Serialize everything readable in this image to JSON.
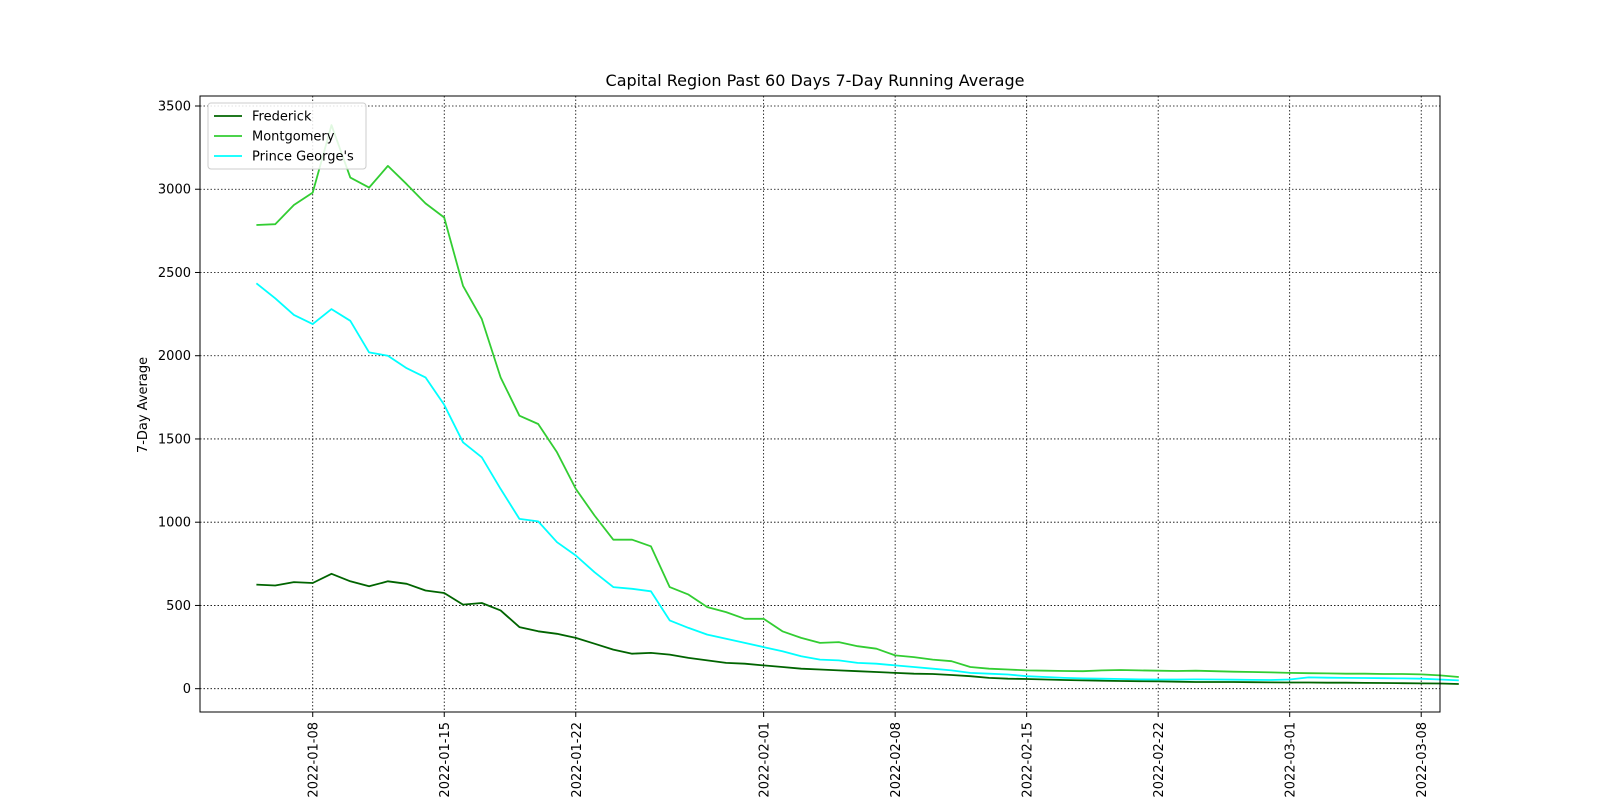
{
  "chart_data": {
    "type": "line",
    "title": "Capital Region Past 60 Days 7-Day Running Average",
    "xlabel": "",
    "ylabel": "7-Day Average",
    "grid": true,
    "grid_style": "dotted",
    "legend_position": "top-left",
    "x_start": "2022-01-05",
    "x_ticks": [
      "2022-01-08",
      "2022-01-15",
      "2022-01-22",
      "2022-02-01",
      "2022-02-08",
      "2022-02-15",
      "2022-02-22",
      "2022-03-01",
      "2022-03-08"
    ],
    "y_ticks": [
      0,
      500,
      1000,
      1500,
      2000,
      2500,
      3000,
      3500
    ],
    "xlim": [
      "2022-01-02",
      "2022-03-09"
    ],
    "ylim": [
      -140,
      3560
    ],
    "series": [
      {
        "name": "Frederick",
        "color": "#006400",
        "values": [
          625,
          620,
          640,
          635,
          690,
          645,
          615,
          645,
          630,
          590,
          575,
          505,
          515,
          470,
          370,
          345,
          330,
          305,
          270,
          235,
          210,
          215,
          205,
          185,
          170,
          155,
          150,
          140,
          130,
          120,
          115,
          110,
          105,
          100,
          95,
          90,
          88,
          82,
          75,
          65,
          60,
          58,
          55,
          52,
          50,
          48,
          46,
          45,
          44,
          42,
          40,
          40,
          40,
          39,
          38,
          37,
          37,
          36,
          36,
          35,
          34,
          33,
          32,
          31,
          28
        ]
      },
      {
        "name": "Montgomery",
        "color": "#32CD32",
        "values": [
          2785,
          2790,
          2905,
          2980,
          3385,
          3070,
          3010,
          3140,
          3030,
          2915,
          2830,
          2420,
          2220,
          1870,
          1640,
          1590,
          1420,
          1200,
          1040,
          895,
          895,
          855,
          610,
          565,
          490,
          460,
          420,
          420,
          345,
          305,
          275,
          280,
          255,
          240,
          200,
          190,
          175,
          165,
          130,
          120,
          115,
          110,
          108,
          106,
          105,
          110,
          112,
          110,
          108,
          106,
          108,
          105,
          102,
          100,
          98,
          95,
          93,
          92,
          90,
          90,
          88,
          88,
          86,
          80,
          70
        ]
      },
      {
        "name": "Prince George's",
        "color": "#00FFFF",
        "values": [
          2435,
          2345,
          2245,
          2190,
          2280,
          2210,
          2020,
          2000,
          1925,
          1870,
          1705,
          1480,
          1390,
          1200,
          1020,
          1005,
          880,
          800,
          700,
          610,
          600,
          585,
          410,
          365,
          325,
          300,
          275,
          250,
          225,
          195,
          175,
          170,
          155,
          150,
          140,
          130,
          120,
          110,
          95,
          90,
          85,
          75,
          70,
          65,
          62,
          60,
          58,
          56,
          55,
          55,
          56,
          55,
          54,
          53,
          52,
          55,
          68,
          66,
          65,
          64,
          63,
          62,
          60,
          55,
          50
        ]
      }
    ]
  }
}
